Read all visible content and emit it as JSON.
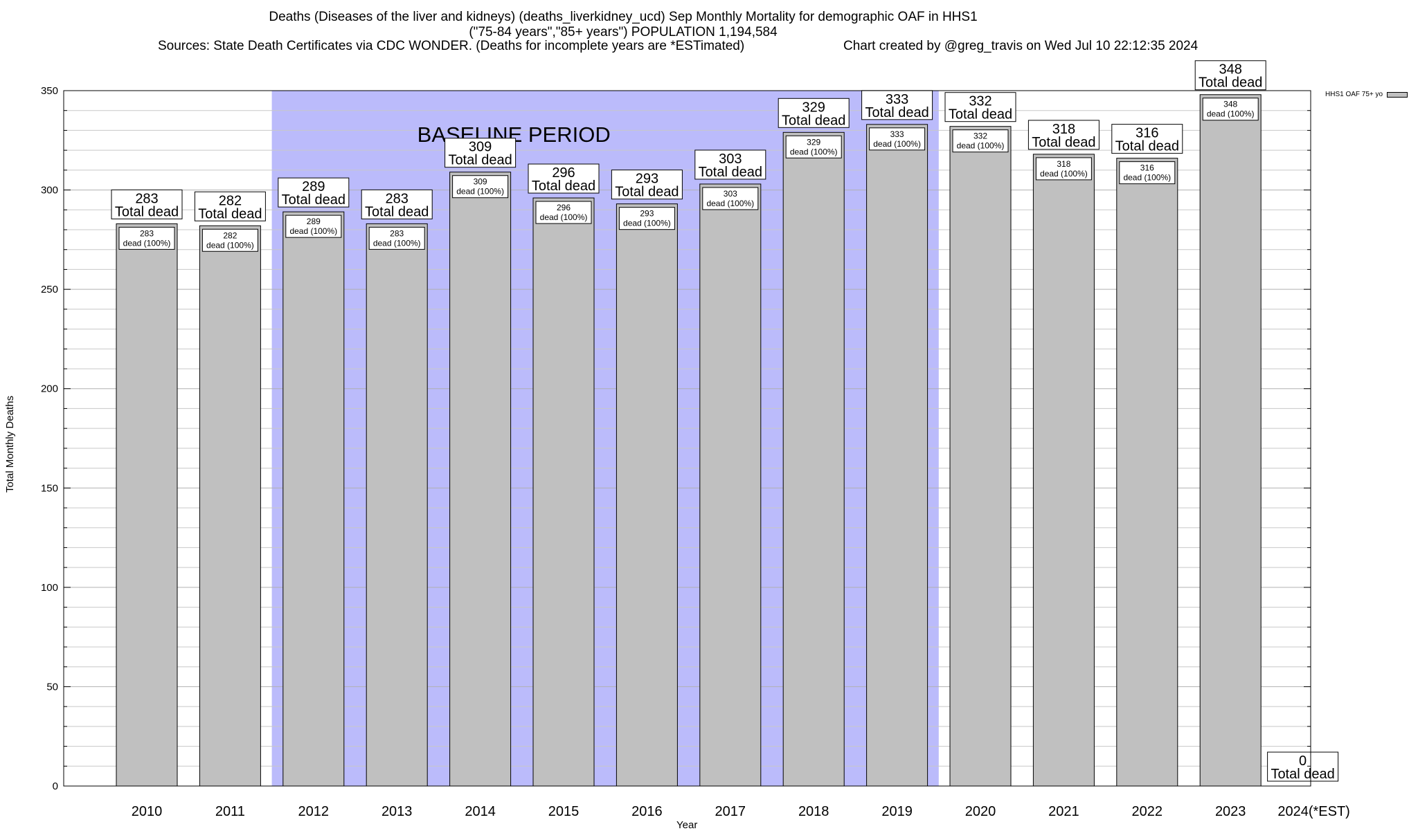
{
  "title": {
    "line1": "Deaths (Diseases of the liver and kidneys) (deaths_liverkidney_ucd) Sep Monthly Mortality for demographic OAF in HHS1",
    "line2": "(\"75-84 years\",\"85+ years\") POPULATION 1,194,584",
    "line3": "Sources: State Death Certificates via CDC WONDER. (Deaths for incomplete years are *ESTimated)",
    "credit": "Chart created by @greg_travis on Wed Jul 10 22:12:35 2024"
  },
  "chart_data": {
    "type": "bar",
    "xlabel": "Year",
    "ylabel": "Total Monthly Deaths",
    "ylim": [
      0,
      350
    ],
    "yticks": [
      0,
      50,
      100,
      150,
      200,
      250,
      300,
      350
    ],
    "grid": "horizontal minor lines",
    "categories": [
      "2010",
      "2011",
      "2012",
      "2013",
      "2014",
      "2015",
      "2016",
      "2017",
      "2018",
      "2019",
      "2020",
      "2021",
      "2022",
      "2023",
      "2024(*EST)"
    ],
    "series": [
      {
        "name": "HHS1 OAF 75+ yo",
        "values": [
          283,
          282,
          289,
          283,
          309,
          296,
          293,
          303,
          329,
          333,
          332,
          318,
          316,
          348,
          0
        ],
        "color": "#c0c0c0"
      }
    ],
    "top_label_suffix": "Total dead",
    "inner_label_text": "dead (100%)",
    "baseline_period": {
      "label": "BASELINE PERIOD",
      "from": "2012",
      "to": "2019",
      "color": "#bbbbfb"
    },
    "legend": "top-right"
  }
}
